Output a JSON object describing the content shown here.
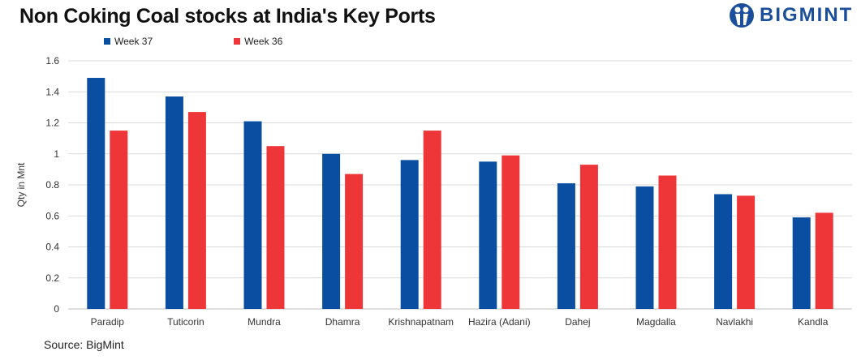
{
  "logo": {
    "text": "BIGMINT"
  },
  "source": "Source: BigMint",
  "chart_data": {
    "type": "bar",
    "title": "Non Coking Coal stocks at India's Key Ports",
    "xlabel": "",
    "ylabel": "Qty in Mnt",
    "ylim": [
      0,
      1.6
    ],
    "yticks": [
      "0",
      "0.2",
      "0.4",
      "0.6",
      "0.8",
      "1",
      "1.2",
      "1.4",
      "1.6"
    ],
    "grid": true,
    "legend_position": "top-left",
    "categories": [
      "Paradip",
      "Tuticorin",
      "Mundra",
      "Dhamra",
      "Krishnapatnam",
      "Hazira (Adani)",
      "Dahej",
      "Magdalla",
      "Navlakhi",
      "Kandla"
    ],
    "series": [
      {
        "name": "Week 37",
        "color": "#0a4ea2",
        "values": [
          1.49,
          1.37,
          1.21,
          1.0,
          0.96,
          0.95,
          0.81,
          0.79,
          0.74,
          0.59
        ]
      },
      {
        "name": "Week 36",
        "color": "#ee3538",
        "values": [
          1.15,
          1.27,
          1.05,
          0.87,
          1.15,
          0.99,
          0.93,
          0.86,
          0.73,
          0.62
        ]
      }
    ]
  }
}
